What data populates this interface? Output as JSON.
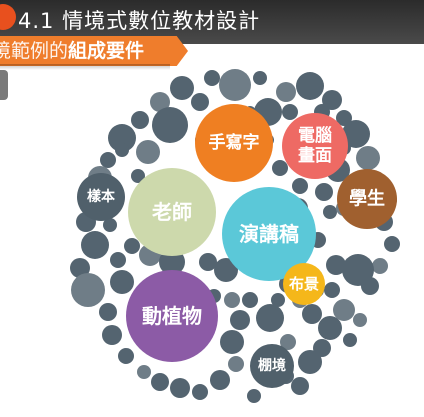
{
  "header": {
    "title": "4.1 情境式數位教材設計",
    "banner_prefix": "境範例的",
    "banner_emph": "組成要件"
  },
  "bubbles": [
    {
      "id": "teacher",
      "label": "老師",
      "color": "#cdd9ac"
    },
    {
      "id": "lecture",
      "label": "演講稿",
      "color": "#5bc8d8"
    },
    {
      "id": "flora_fauna",
      "label": "動植物",
      "color": "#8c5ba6"
    },
    {
      "id": "handwriting",
      "label": "手寫字",
      "color": "#ef7f22"
    },
    {
      "id": "screen",
      "label": "電腦\n畫面",
      "color": "#ee6a64"
    },
    {
      "id": "student",
      "label": "學生",
      "color": "#a0602f"
    },
    {
      "id": "scenery",
      "label": "布景",
      "color": "#f5b71a"
    },
    {
      "id": "sample",
      "label": "樣本",
      "color": "#50606b"
    },
    {
      "id": "shed",
      "label": "棚境",
      "color": "#50606b"
    }
  ],
  "colors": {
    "filler": "#546470",
    "filler_light": "#6f7d87"
  }
}
